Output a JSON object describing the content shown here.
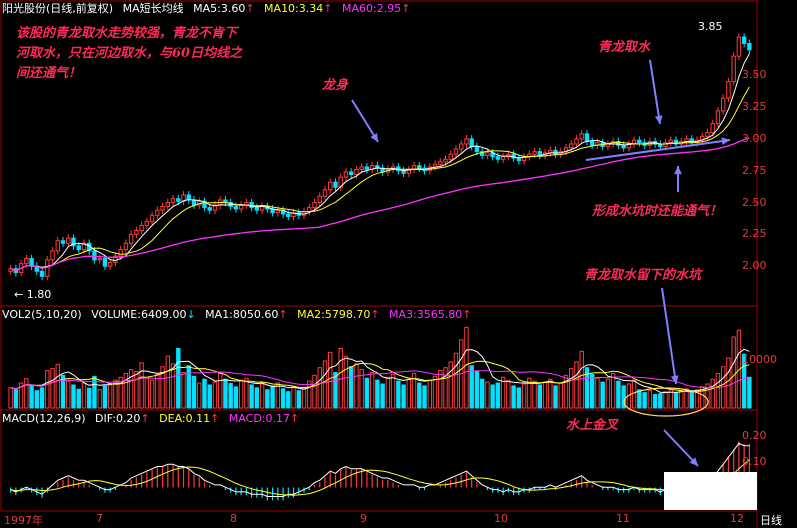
{
  "header": {
    "title": "阳光股份(日线,前复权)",
    "ma_label": "MA短长均线",
    "ma5": "MA5:3.60",
    "ma10": "MA10:3.34",
    "ma60": "MA60:2.95",
    "up_arrow": "↑"
  },
  "vol_header": {
    "label": "VOL2(5,10,20)",
    "volume": "VOLUME:6409.00",
    "down_arrow": "↓",
    "ma1": "MA1:8050.60",
    "ma2": "MA2:5798.70",
    "ma3": "MA3:3565.80",
    "up_arrow": "↑"
  },
  "macd_header": {
    "label": "MACD(12,26,9)",
    "dif": "DIF:0.20",
    "dea": "DEA:0.11",
    "macd": "MACD:0.17",
    "up_arrow": "↑"
  },
  "annotations": {
    "intro": "该股的青龙取水走势较强，青龙不肯下河取水，只在河边取水，与60日均线之间还通气！",
    "longshen": "龙身",
    "qinglong": "青龙取水",
    "shuikeng": "形成水坑时还能通气！",
    "shuikeng_left": "青龙取水留下的水坑",
    "jincha": "水上金叉"
  },
  "timeframe": "日线",
  "colors": {
    "up": "#ff3b3b",
    "down": "#00e0ff",
    "ma5": "#ffffff",
    "ma10": "#ffff33",
    "ma60": "#ff33ff",
    "annotation": "#ff2a55",
    "arrow": "#8080ff"
  },
  "chart_data": [
    {
      "type": "candlestick",
      "title": "阳光股份(日线,前复权)",
      "y_ticks": [
        "3.50",
        "3.25",
        "3.00",
        "2.75",
        "2.50",
        "2.25",
        "2.00"
      ],
      "ylim": [
        1.75,
        3.95
      ],
      "x_ticks": [
        "1997年",
        "7",
        "8",
        "9",
        "10",
        "11",
        "12"
      ],
      "high_label": "3.85",
      "low_label": "← 1.80",
      "series": [
        {
          "name": "MA5",
          "last": 3.6
        },
        {
          "name": "MA10",
          "last": 3.34
        },
        {
          "name": "MA60",
          "last": 2.95
        }
      ],
      "close": [
        1.98,
        1.95,
        2.02,
        2.06,
        2.0,
        1.96,
        1.92,
        2.05,
        2.12,
        2.2,
        2.18,
        2.22,
        2.16,
        2.13,
        2.18,
        2.12,
        2.05,
        2.06,
        2.0,
        2.03,
        2.08,
        2.13,
        2.18,
        2.25,
        2.28,
        2.32,
        2.35,
        2.4,
        2.44,
        2.47,
        2.5,
        2.53,
        2.51,
        2.56,
        2.52,
        2.48,
        2.51,
        2.46,
        2.44,
        2.48,
        2.52,
        2.5,
        2.47,
        2.45,
        2.48,
        2.5,
        2.46,
        2.44,
        2.47,
        2.45,
        2.42,
        2.44,
        2.41,
        2.39,
        2.42,
        2.4,
        2.43,
        2.46,
        2.5,
        2.55,
        2.6,
        2.66,
        2.62,
        2.7,
        2.74,
        2.72,
        2.76,
        2.78,
        2.76,
        2.79,
        2.77,
        2.74,
        2.76,
        2.78,
        2.75,
        2.73,
        2.76,
        2.79,
        2.77,
        2.75,
        2.78,
        2.8,
        2.82,
        2.84,
        2.88,
        2.92,
        2.96,
        3.0,
        2.94,
        2.9,
        2.87,
        2.89,
        2.86,
        2.84,
        2.86,
        2.88,
        2.85,
        2.83,
        2.86,
        2.88,
        2.9,
        2.87,
        2.89,
        2.91,
        2.88,
        2.9,
        2.93,
        2.96,
        3.0,
        3.04,
        2.98,
        2.95,
        2.97,
        2.94,
        2.96,
        2.98,
        2.95,
        2.93,
        2.96,
        2.99,
        2.97,
        2.95,
        2.98,
        2.96,
        2.94,
        2.97,
        2.99,
        2.96,
        2.98,
        3.0,
        2.97,
        2.99,
        3.02,
        3.05,
        3.12,
        3.22,
        3.32,
        3.45,
        3.65,
        3.8,
        3.75,
        3.7
      ],
      "volume": [
        4200,
        3800,
        5200,
        6100,
        4800,
        3600,
        4200,
        7800,
        8200,
        9100,
        6800,
        5600,
        4800,
        3900,
        5200,
        4100,
        6600,
        3800,
        4600,
        5100,
        5800,
        6400,
        7200,
        8000,
        7600,
        9400,
        6200,
        5800,
        7000,
        8600,
        10800,
        9200,
        12400,
        7400,
        8800,
        6600,
        5200,
        6000,
        4800,
        5400,
        7200,
        6000,
        5100,
        4400,
        5800,
        6200,
        4800,
        4200,
        5000,
        3800,
        4600,
        5200,
        4000,
        3400,
        4400,
        3600,
        4200,
        5600,
        6800,
        8400,
        9800,
        11600,
        7400,
        12400,
        10800,
        8600,
        9200,
        8000,
        6200,
        7400,
        5800,
        5000,
        6400,
        7000,
        5600,
        4800,
        6000,
        7200,
        5200,
        4600,
        5800,
        6600,
        7800,
        8400,
        9600,
        11400,
        14200,
        16800,
        8800,
        7600,
        6000,
        5400,
        4800,
        5200,
        6400,
        5800,
        4600,
        4200,
        5000,
        6200,
        5600,
        4800,
        5400,
        6000,
        4600,
        5200,
        6800,
        8200,
        9600,
        11800,
        8400,
        7000,
        6200,
        5400,
        6000,
        7200,
        5600,
        4600,
        5000,
        5800,
        3800,
        3200,
        3600,
        2800,
        3000,
        3400,
        3800,
        3200,
        3600,
        4000,
        3400,
        3800,
        4400,
        5000,
        6000,
        7200,
        8600,
        10400,
        14800,
        16200,
        11200,
        6409
      ],
      "macd": [
        -0.02,
        -0.03,
        -0.02,
        -0.01,
        -0.02,
        -0.03,
        -0.04,
        -0.02,
        0.0,
        0.02,
        0.03,
        0.04,
        0.03,
        0.02,
        0.02,
        0.01,
        0.0,
        -0.01,
        -0.02,
        -0.02,
        -0.01,
        0.0,
        0.01,
        0.03,
        0.04,
        0.05,
        0.06,
        0.07,
        0.08,
        0.08,
        0.09,
        0.09,
        0.08,
        0.08,
        0.07,
        0.05,
        0.04,
        0.02,
        0.01,
        0.0,
        0.0,
        -0.01,
        -0.02,
        -0.03,
        -0.03,
        -0.03,
        -0.04,
        -0.04,
        -0.04,
        -0.05,
        -0.05,
        -0.05,
        -0.05,
        -0.04,
        -0.04,
        -0.03,
        -0.02,
        -0.01,
        0.01,
        0.02,
        0.04,
        0.06,
        0.05,
        0.07,
        0.08,
        0.07,
        0.07,
        0.07,
        0.06,
        0.05,
        0.04,
        0.03,
        0.03,
        0.02,
        0.01,
        0.0,
        0.0,
        0.0,
        -0.01,
        -0.01,
        0.0,
        0.0,
        0.01,
        0.02,
        0.03,
        0.04,
        0.05,
        0.06,
        0.04,
        0.02,
        0.0,
        -0.01,
        -0.02,
        -0.02,
        -0.03,
        -0.02,
        -0.03,
        -0.03,
        -0.02,
        -0.02,
        -0.01,
        -0.01,
        -0.01,
        0.0,
        -0.01,
        0.0,
        0.01,
        0.02,
        0.03,
        0.04,
        0.02,
        0.01,
        0.0,
        -0.01,
        -0.01,
        -0.01,
        -0.02,
        -0.02,
        -0.02,
        -0.01,
        -0.02,
        -0.02,
        -0.02,
        -0.02,
        -0.03,
        -0.02,
        -0.02,
        -0.02,
        -0.02,
        -0.01,
        -0.01,
        -0.01,
        0.0,
        0.01,
        0.03,
        0.06,
        0.09,
        0.12,
        0.15,
        0.18,
        0.17,
        0.17
      ],
      "vol_ticks": [
        "10000"
      ],
      "macd_ticks": [
        "0.20",
        "0.10"
      ]
    }
  ]
}
